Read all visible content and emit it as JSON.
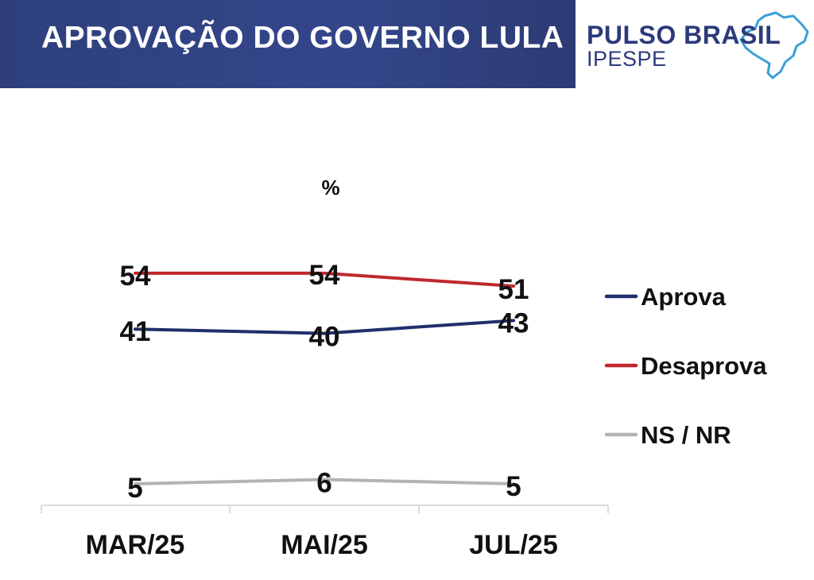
{
  "header": {
    "title": "APROVAÇÃO DO GOVERNO LULA",
    "logo_primary": "PULSO BRASIL",
    "logo_secondary": "IPESPE",
    "logo_icon": "brazil-map-icon"
  },
  "chart_data": {
    "type": "line",
    "title": "",
    "unit_label": "%",
    "categories": [
      "MAR/25",
      "MAI/25",
      "JUL/25"
    ],
    "series": [
      {
        "name": "Aprova",
        "values": [
          41,
          40,
          43
        ],
        "color": "#1f2f6b"
      },
      {
        "name": "Desaprova",
        "values": [
          54,
          54,
          51
        ],
        "color": "#c0282d"
      },
      {
        "name": "NS / NR",
        "values": [
          5,
          6,
          5
        ],
        "color": "#b3b3b3"
      }
    ],
    "ylim": [
      0,
      80
    ],
    "grid": false,
    "legend_position": "right"
  }
}
